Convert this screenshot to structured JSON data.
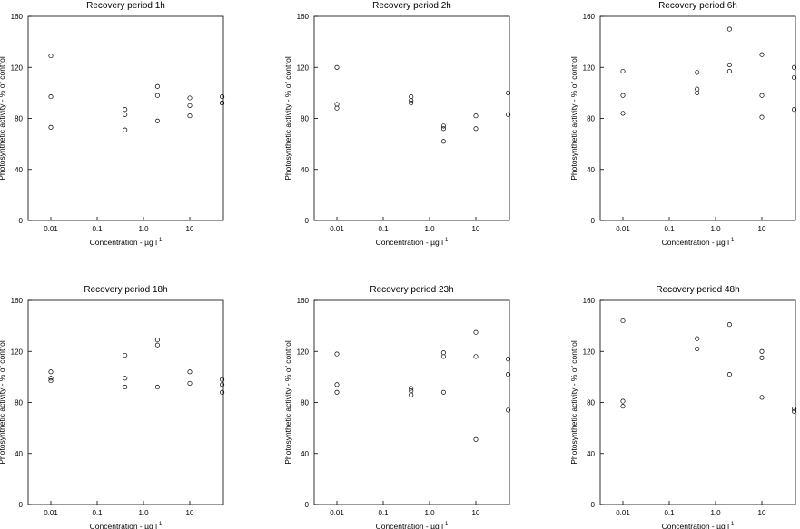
{
  "chart_data": [
    {
      "type": "scatter",
      "title": "Recovery period 1h",
      "xlabel": "Concentration - µg l",
      "xlabel_sup": "-1",
      "ylabel": "Photosynthetic activity - % of control",
      "xscale": "log",
      "xticks": [
        "0.01",
        "0.1",
        "1.0",
        "10"
      ],
      "yticks": [
        "0",
        "40",
        "80",
        "120",
        "160"
      ],
      "ylim": [
        0,
        160
      ],
      "grid": false,
      "series": [
        {
          "x": [
            0.01,
            0.01,
            0.01,
            0.4,
            0.4,
            0.4,
            2,
            2,
            2,
            10,
            10,
            10,
            50,
            50,
            50
          ],
          "y": [
            129,
            97,
            73,
            87,
            83,
            71,
            105,
            98,
            78,
            96,
            90,
            82,
            97,
            92,
            92
          ]
        }
      ]
    },
    {
      "type": "scatter",
      "title": "Recovery period 2h",
      "xlabel": "Concentration - µg l",
      "xlabel_sup": "-1",
      "ylabel": "Photosynthetic activity - % of control",
      "xscale": "log",
      "xticks": [
        "0.01",
        "0.1",
        "1.0",
        "10"
      ],
      "yticks": [
        "0",
        "40",
        "80",
        "120",
        "160"
      ],
      "ylim": [
        0,
        160
      ],
      "grid": false,
      "series": [
        {
          "x": [
            0.01,
            0.01,
            0.01,
            0.4,
            0.4,
            0.4,
            2,
            2,
            2,
            10,
            10,
            50,
            50
          ],
          "y": [
            120,
            91,
            88,
            97,
            94,
            92,
            74,
            72,
            62,
            82,
            72,
            100,
            83
          ]
        }
      ]
    },
    {
      "type": "scatter",
      "title": "Recovery period 6h",
      "xlabel": "Concentration - µg l",
      "xlabel_sup": "-1",
      "ylabel": "Photosynthetic activity - % of control",
      "xscale": "log",
      "xticks": [
        "0.01",
        "0.1",
        "1.0",
        "10"
      ],
      "yticks": [
        "0",
        "40",
        "80",
        "120",
        "160"
      ],
      "ylim": [
        0,
        160
      ],
      "grid": false,
      "series": [
        {
          "x": [
            0.01,
            0.01,
            0.01,
            0.4,
            0.4,
            0.4,
            2,
            2,
            2,
            10,
            10,
            10,
            50,
            50,
            50
          ],
          "y": [
            117,
            98,
            84,
            116,
            103,
            100,
            150,
            122,
            117,
            130,
            98,
            81,
            120,
            112,
            87
          ]
        }
      ]
    },
    {
      "type": "scatter",
      "title": "Recovery period 18h",
      "xlabel": "Concentration - µg l",
      "xlabel_sup": "-1",
      "ylabel": "Photosynthetic activity - % of control",
      "xscale": "log",
      "xticks": [
        "0.01",
        "0.1",
        "1.0",
        "10"
      ],
      "yticks": [
        "0",
        "40",
        "80",
        "120",
        "160"
      ],
      "ylim": [
        0,
        160
      ],
      "grid": false,
      "series": [
        {
          "x": [
            0.01,
            0.01,
            0.01,
            0.4,
            0.4,
            0.4,
            2,
            2,
            2,
            10,
            10,
            50,
            50,
            50
          ],
          "y": [
            104,
            99,
            97,
            117,
            99,
            92,
            129,
            125,
            92,
            104,
            95,
            98,
            94,
            88
          ]
        }
      ]
    },
    {
      "type": "scatter",
      "title": "Recovery period 23h",
      "xlabel": "Concentration - µg l",
      "xlabel_sup": "-1",
      "ylabel": "Photosynthetic activity - % of control",
      "xscale": "log",
      "xticks": [
        "0.01",
        "0.1",
        "1.0",
        "10"
      ],
      "yticks": [
        "0",
        "40",
        "80",
        "120",
        "160"
      ],
      "ylim": [
        0,
        160
      ],
      "grid": false,
      "series": [
        {
          "x": [
            0.01,
            0.01,
            0.01,
            0.4,
            0.4,
            0.4,
            2,
            2,
            2,
            10,
            10,
            10,
            50,
            50,
            50
          ],
          "y": [
            118,
            94,
            88,
            91,
            89,
            86,
            119,
            116,
            88,
            135,
            116,
            51,
            114,
            102,
            74
          ]
        }
      ]
    },
    {
      "type": "scatter",
      "title": "Recovery period 48h",
      "xlabel": "Concentration - µg l",
      "xlabel_sup": "-1",
      "ylabel": "Photosynthetic activity - % of control",
      "xscale": "log",
      "xticks": [
        "0.01",
        "0.1",
        "1.0",
        "10"
      ],
      "yticks": [
        "0",
        "40",
        "80",
        "120",
        "160"
      ],
      "ylim": [
        0,
        160
      ],
      "grid": false,
      "series": [
        {
          "x": [
            0.01,
            0.01,
            0.01,
            0.4,
            0.4,
            2,
            2,
            10,
            10,
            10,
            50,
            50
          ],
          "y": [
            144,
            81,
            77,
            130,
            122,
            141,
            102,
            120,
            115,
            84,
            75,
            73
          ]
        }
      ]
    }
  ]
}
